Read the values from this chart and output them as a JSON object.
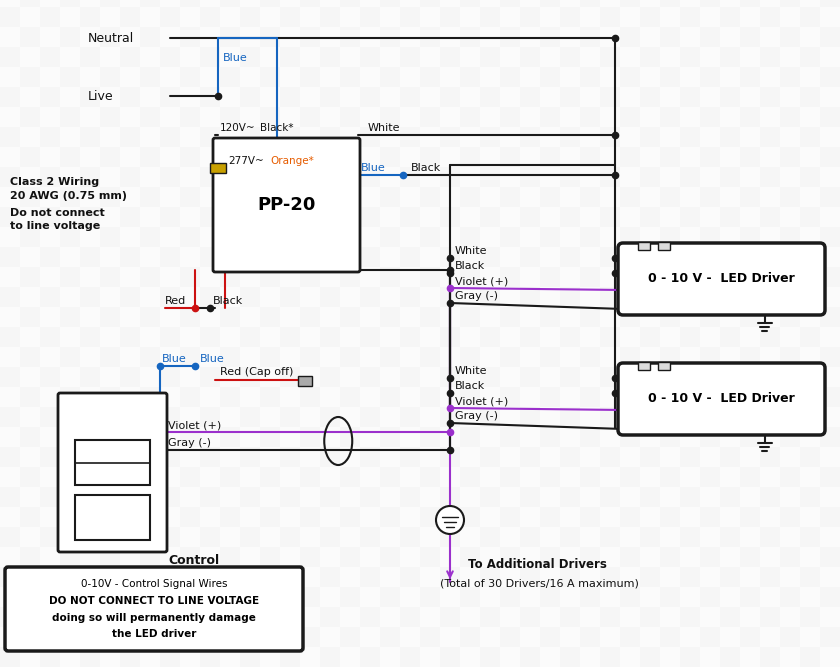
{
  "bg_checker_light": "#d0d0d0",
  "bg_checker_dark": "#b8b8b8",
  "line_color": "#1a1a1a",
  "blue_color": "#1565c0",
  "orange_color": "#e65c00",
  "red_color": "#cc1111",
  "violet_color": "#9b30cc",
  "gray_color": "#666666",
  "labels": {
    "neutral": "Neutral",
    "live": "Live",
    "blue": "Blue",
    "white": "White",
    "black": "Black",
    "orange_star": "Orange*",
    "black_star": "Black*",
    "pp20": "PP-20",
    "red": "Red",
    "class2_line1": "Class 2 Wiring",
    "class2_line2": "20 AWG (0.75 mm)",
    "class2_line3": "Do not connect",
    "class2_line4": "to line voltage",
    "v120": "120V~",
    "v277": "277V~",
    "violet_plus": "Violet (+)",
    "gray_minus": "Gray (-)",
    "red_capoff": "Red (Cap off)",
    "control": "Control",
    "led_driver": "0 - 10 V -  LED Driver",
    "to_additional": "To Additional Drivers",
    "total_drivers": "(Total of 30 Drivers/16 A maximum)",
    "warning_line1": "0-10V - Control Signal Wires",
    "warning_line2": "DO NOT CONNECT TO LINE VOLTAGE",
    "warning_line3": "doing so will permanently damage",
    "warning_line4": "the LED driver"
  }
}
